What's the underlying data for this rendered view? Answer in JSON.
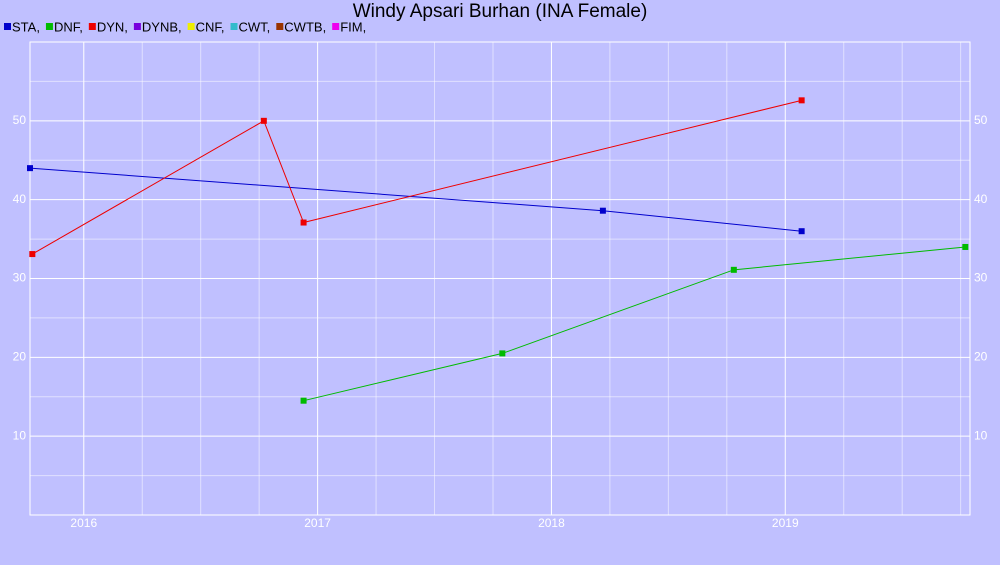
{
  "chart_data": {
    "type": "line",
    "title": "Windy Apsari Burhan (INA Female)",
    "xlim": [
      2015.77,
      2019.79
    ],
    "xticks": [
      2016,
      2017,
      2018,
      2019
    ],
    "minor_xticks": [
      2016.25,
      2016.5,
      2016.75,
      2017.25,
      2017.5,
      2017.75,
      2018.25,
      2018.5,
      2018.75,
      2019.25,
      2019.5,
      2019.75
    ],
    "ylim": [
      0,
      60
    ],
    "yticks": [
      10,
      20,
      30,
      40,
      50
    ],
    "minor_yticks": [
      5,
      15,
      25,
      35,
      45,
      55
    ],
    "grid": true,
    "background": "#c0c0ff",
    "grid_color": "#ffffff",
    "series": [
      {
        "name": "STA,",
        "color": "#0000cc",
        "x": [
          2015.77,
          2018.22,
          2019.07
        ],
        "values": [
          44,
          38.6,
          36
        ]
      },
      {
        "name": "DNF,",
        "color": "#00bb00",
        "x": [
          2016.94,
          2017.79,
          2018.78,
          2019.77
        ],
        "values": [
          14.5,
          20.5,
          31.1,
          34
        ]
      },
      {
        "name": "DYN,",
        "color": "#ee0000",
        "x": [
          2015.78,
          2016.77,
          2016.94,
          2019.07
        ],
        "values": [
          33.1,
          50,
          37.1,
          52.6
        ]
      },
      {
        "name": "DYNB,",
        "color": "#7700dd",
        "x": [],
        "values": []
      },
      {
        "name": "CNF,",
        "color": "#eeee00",
        "x": [],
        "values": []
      },
      {
        "name": "CWT,",
        "color": "#33bbcc",
        "x": [],
        "values": []
      },
      {
        "name": "CWTB,",
        "color": "#993300",
        "x": [],
        "values": []
      },
      {
        "name": "FIM,",
        "color": "#ee00ee",
        "x": [],
        "values": []
      }
    ]
  }
}
